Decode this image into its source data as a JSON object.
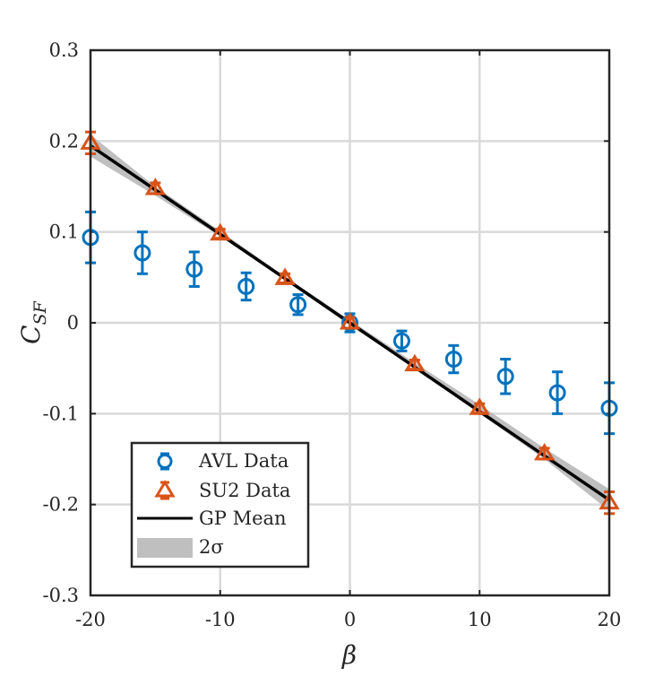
{
  "chart_data": {
    "type": "scatter",
    "title": "",
    "xlabel": "β",
    "ylabel": {
      "main": "C",
      "sub": "SF"
    },
    "xlim": [
      -20,
      20
    ],
    "ylim": [
      -0.3,
      0.3
    ],
    "xticks": [
      -20,
      -10,
      0,
      10,
      20
    ],
    "xtick_labels": [
      "-20",
      "-10",
      "0",
      "10",
      "20"
    ],
    "yticks": [
      -0.3,
      -0.2,
      -0.1,
      0,
      0.1,
      0.2,
      0.3
    ],
    "ytick_labels": [
      "-0.3",
      "-0.2",
      "-0.1",
      "0",
      "0.1",
      "0.2",
      "0.3"
    ],
    "grid": true,
    "legend_position": "bottom-left",
    "series": [
      {
        "name": "AVL Data",
        "marker": "circle",
        "color": "#0072BD",
        "x": [
          -20,
          -16,
          -12,
          -8,
          -4,
          0,
          4,
          8,
          12,
          16,
          20
        ],
        "y": [
          0.094,
          0.077,
          0.059,
          0.04,
          0.02,
          0.0,
          -0.02,
          -0.04,
          -0.059,
          -0.077,
          -0.094
        ],
        "err": [
          0.028,
          0.023,
          0.019,
          0.015,
          0.011,
          0.01,
          0.011,
          0.015,
          0.019,
          0.023,
          0.028
        ]
      },
      {
        "name": "SU2 Data",
        "marker": "triangle",
        "color": "#D95319",
        "x": [
          -20,
          -15,
          -10,
          -5,
          0,
          5,
          10,
          15,
          20
        ],
        "y": [
          0.198,
          0.148,
          0.098,
          0.049,
          0.0,
          -0.046,
          -0.094,
          -0.144,
          -0.198
        ],
        "err": [
          0.012,
          0.006,
          0.005,
          0.005,
          0.006,
          0.005,
          0.005,
          0.006,
          0.012
        ]
      },
      {
        "name": "GP Mean",
        "type": "line",
        "color": "#000000",
        "x": [
          -20,
          20
        ],
        "y": [
          0.195,
          -0.195
        ]
      },
      {
        "name": "2σ",
        "type": "band",
        "color": "#BFBFBF",
        "x": [
          -20,
          -15,
          -10,
          -5,
          0,
          5,
          10,
          15,
          20
        ],
        "lower": [
          0.183,
          0.14,
          0.095,
          0.047,
          -0.003,
          -0.05,
          -0.1,
          -0.15,
          -0.207
        ],
        "upper": [
          0.207,
          0.15,
          0.101,
          0.051,
          0.003,
          -0.044,
          -0.09,
          -0.138,
          -0.183
        ]
      }
    ]
  }
}
